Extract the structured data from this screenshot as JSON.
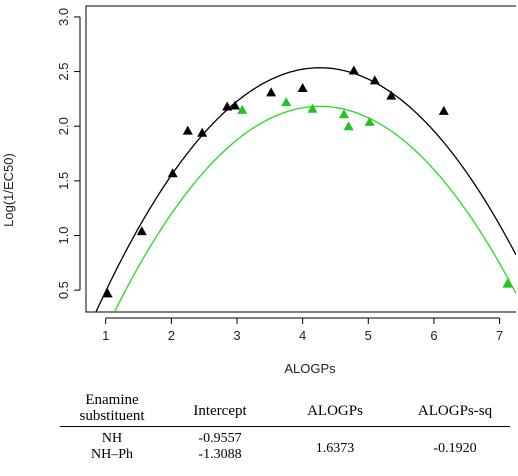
{
  "chart_data": {
    "type": "scatter",
    "xlabel": "ALOGPs",
    "ylabel": "Log(1/EC50)",
    "xlim": [
      0.7,
      7.25
    ],
    "ylim": [
      0.3,
      3.1
    ],
    "x_ticks": [
      "1",
      "2",
      "3",
      "4",
      "5",
      "6",
      "7"
    ],
    "y_ticks": [
      "0.5",
      "1.0",
      "1.5",
      "2.0",
      "2.5",
      "3.0"
    ],
    "grid": false,
    "legend": "none",
    "series": [
      {
        "color": "#000000",
        "marker": "triangle",
        "points": [
          [
            1.03,
            0.47
          ],
          [
            1.55,
            1.04
          ],
          [
            2.02,
            1.57
          ],
          [
            2.25,
            1.96
          ],
          [
            2.47,
            1.94
          ],
          [
            2.85,
            2.18
          ],
          [
            2.97,
            2.19
          ],
          [
            3.52,
            2.31
          ],
          [
            4.0,
            2.35
          ],
          [
            4.78,
            2.51
          ],
          [
            5.1,
            2.42
          ],
          [
            5.35,
            2.28
          ],
          [
            6.15,
            2.14
          ]
        ],
        "curve": {
          "color": "#000000",
          "intercept": -0.9557,
          "linear": 1.6373,
          "quadratic": -0.192,
          "x_range": [
            0.7,
            7.25
          ]
        }
      },
      {
        "color": "#22c322",
        "marker": "triangle",
        "points": [
          [
            3.08,
            2.15
          ],
          [
            3.75,
            2.22
          ],
          [
            4.15,
            2.16
          ],
          [
            4.63,
            2.11
          ],
          [
            4.7,
            2.0
          ],
          [
            5.02,
            2.04
          ],
          [
            7.12,
            0.56
          ]
        ],
        "curve": {
          "color": "#22dd22",
          "intercept": -1.3088,
          "linear": 1.6373,
          "quadratic": -0.192,
          "x_range": [
            1.1,
            7.25
          ]
        }
      }
    ]
  },
  "table": {
    "headers": [
      "Enamine\nsubstituent",
      "Intercept",
      "ALOGPs",
      "ALOGPs-sq"
    ],
    "rows": [
      {
        "substituent": "NH",
        "intercept": "-0.9557"
      },
      {
        "substituent": "NH–Ph",
        "intercept": "-1.3088"
      }
    ],
    "shared": {
      "alogps": "1.6373",
      "alogps_sq": "-0.1920"
    }
  }
}
